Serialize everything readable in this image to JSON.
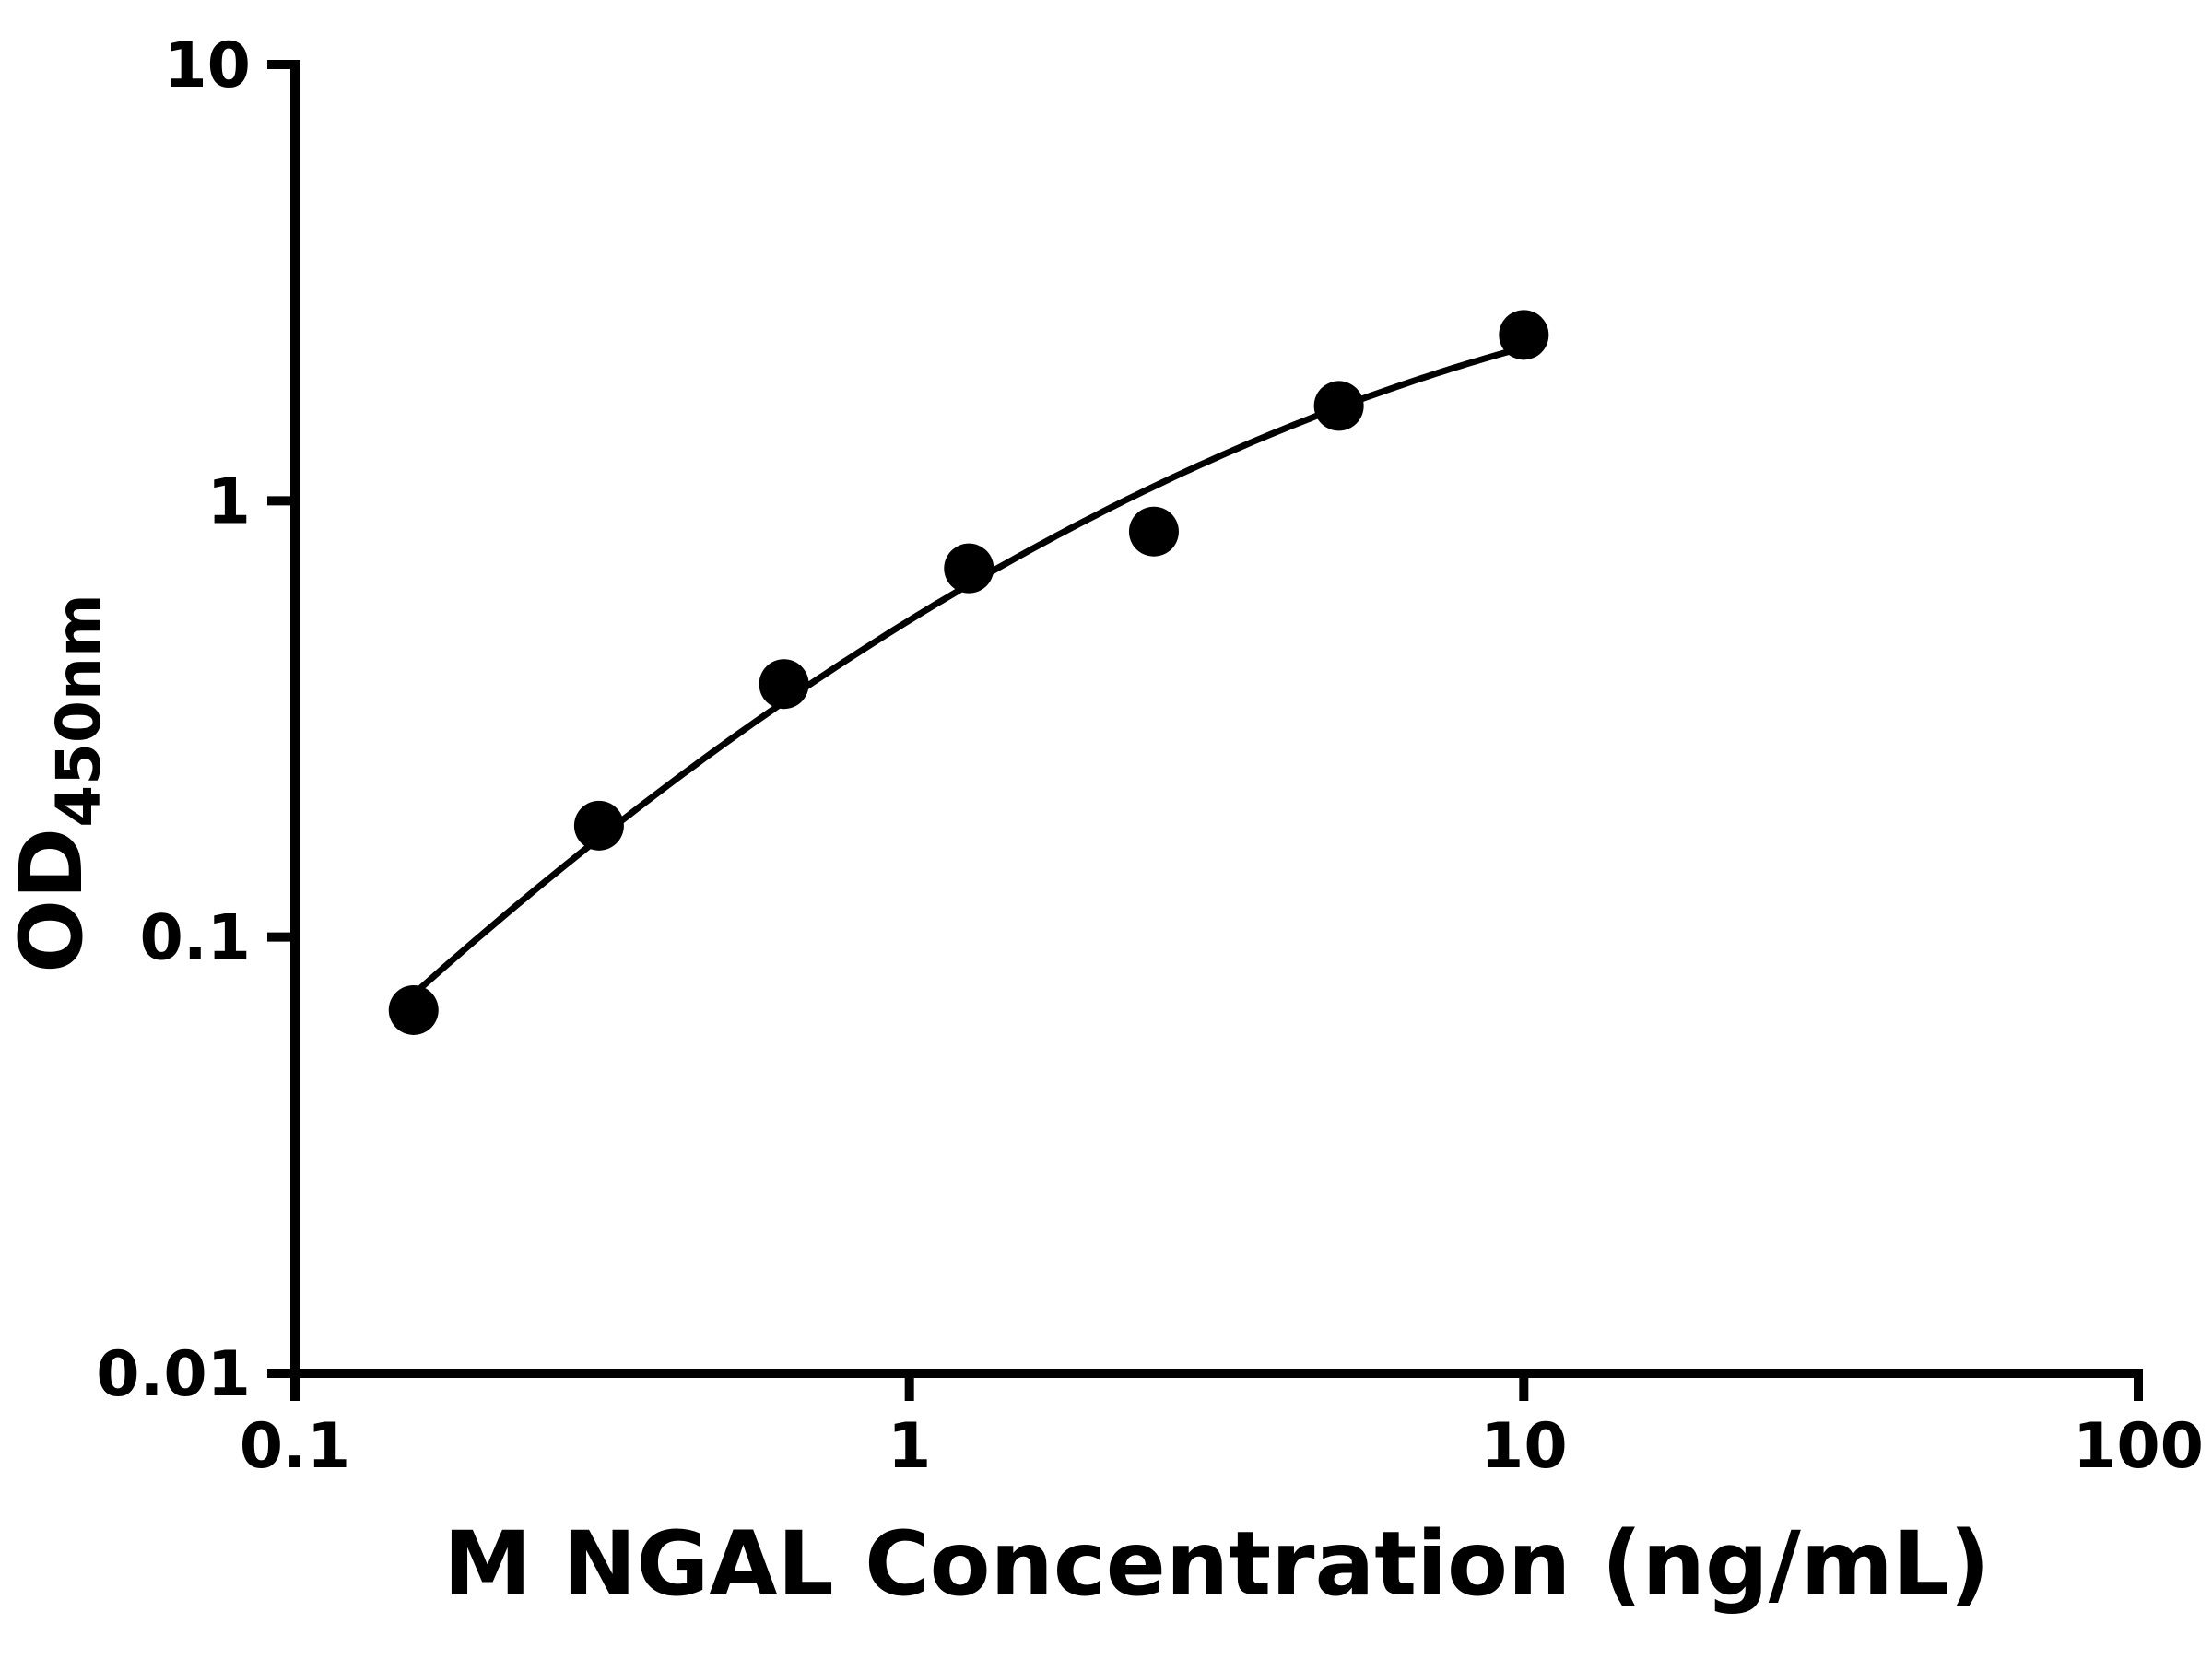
{
  "figure": {
    "kind": "elisa-standard-curve",
    "background": "#ffffff"
  },
  "chart_data": {
    "type": "scatter",
    "title": "",
    "xlabel": "M NGAL Concentration (ng/mL)",
    "ylabel_main": "OD",
    "ylabel_sub": "450nm",
    "x_scale": "log",
    "y_scale": "log",
    "xlim": [
      0.1,
      100
    ],
    "ylim": [
      0.01,
      10
    ],
    "x_ticks": [
      0.1,
      1,
      10,
      100
    ],
    "x_tick_labels": [
      "0.1",
      "1",
      "10",
      "100"
    ],
    "y_ticks": [
      0.01,
      0.1,
      1,
      10
    ],
    "y_tick_labels": [
      "0.01",
      "0.1",
      "1",
      "10"
    ],
    "grid": false,
    "legend": "none",
    "series": [
      {
        "name": "standard-curve-points",
        "x": [
          0.156,
          0.3125,
          0.625,
          1.25,
          2.5,
          5,
          10
        ],
        "y": [
          0.068,
          0.18,
          0.38,
          0.7,
          0.85,
          1.65,
          2.4
        ],
        "marker": "filled-circle",
        "marker_color": "#000000",
        "fit_line": "smooth-log-log",
        "line_color": "#000000"
      }
    ],
    "colors": {
      "axis": "#000000",
      "marker": "#000000",
      "line": "#000000",
      "background": "#ffffff",
      "text": "#000000"
    }
  }
}
